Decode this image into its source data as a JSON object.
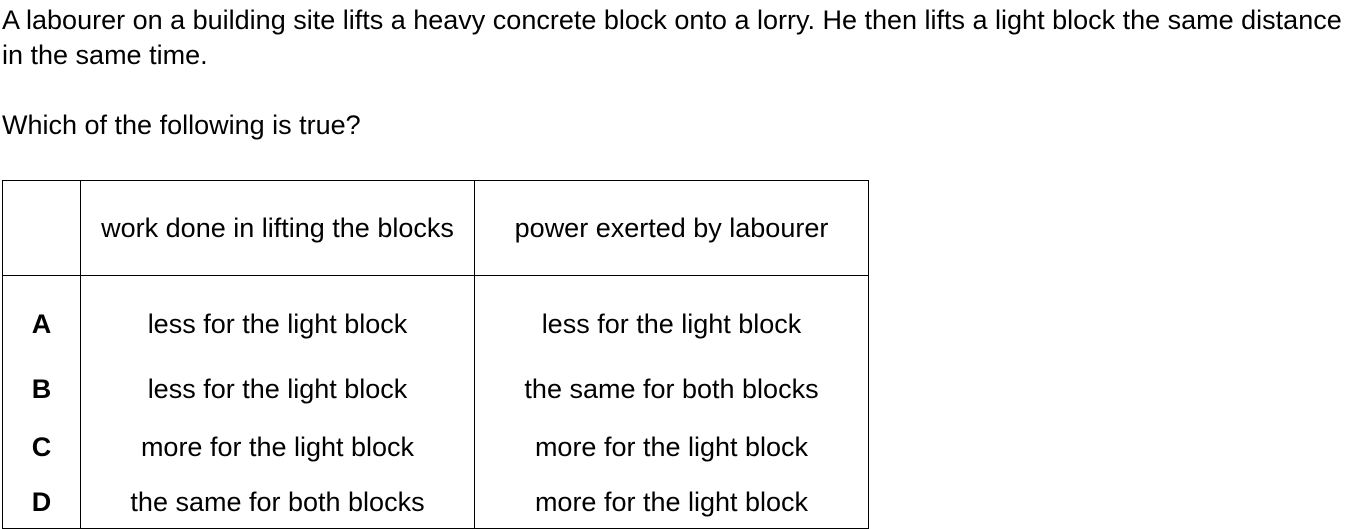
{
  "question": {
    "stem": "A labourer on a building site lifts a heavy concrete block onto a lorry. He then lifts a light block the same distance in the same time.",
    "prompt": "Which of the following is true?"
  },
  "table": {
    "headers": [
      "",
      "work done in lifting the blocks",
      "power exerted by labourer"
    ],
    "rows": [
      {
        "letter": "A",
        "work": "less for the light block",
        "power": "less for the light block"
      },
      {
        "letter": "B",
        "work": "less for the light block",
        "power": "the same for both blocks"
      },
      {
        "letter": "C",
        "work": "more for the light block",
        "power": "more for the light block"
      },
      {
        "letter": "D",
        "work": "the same for both blocks",
        "power": "more for the light block"
      }
    ]
  }
}
